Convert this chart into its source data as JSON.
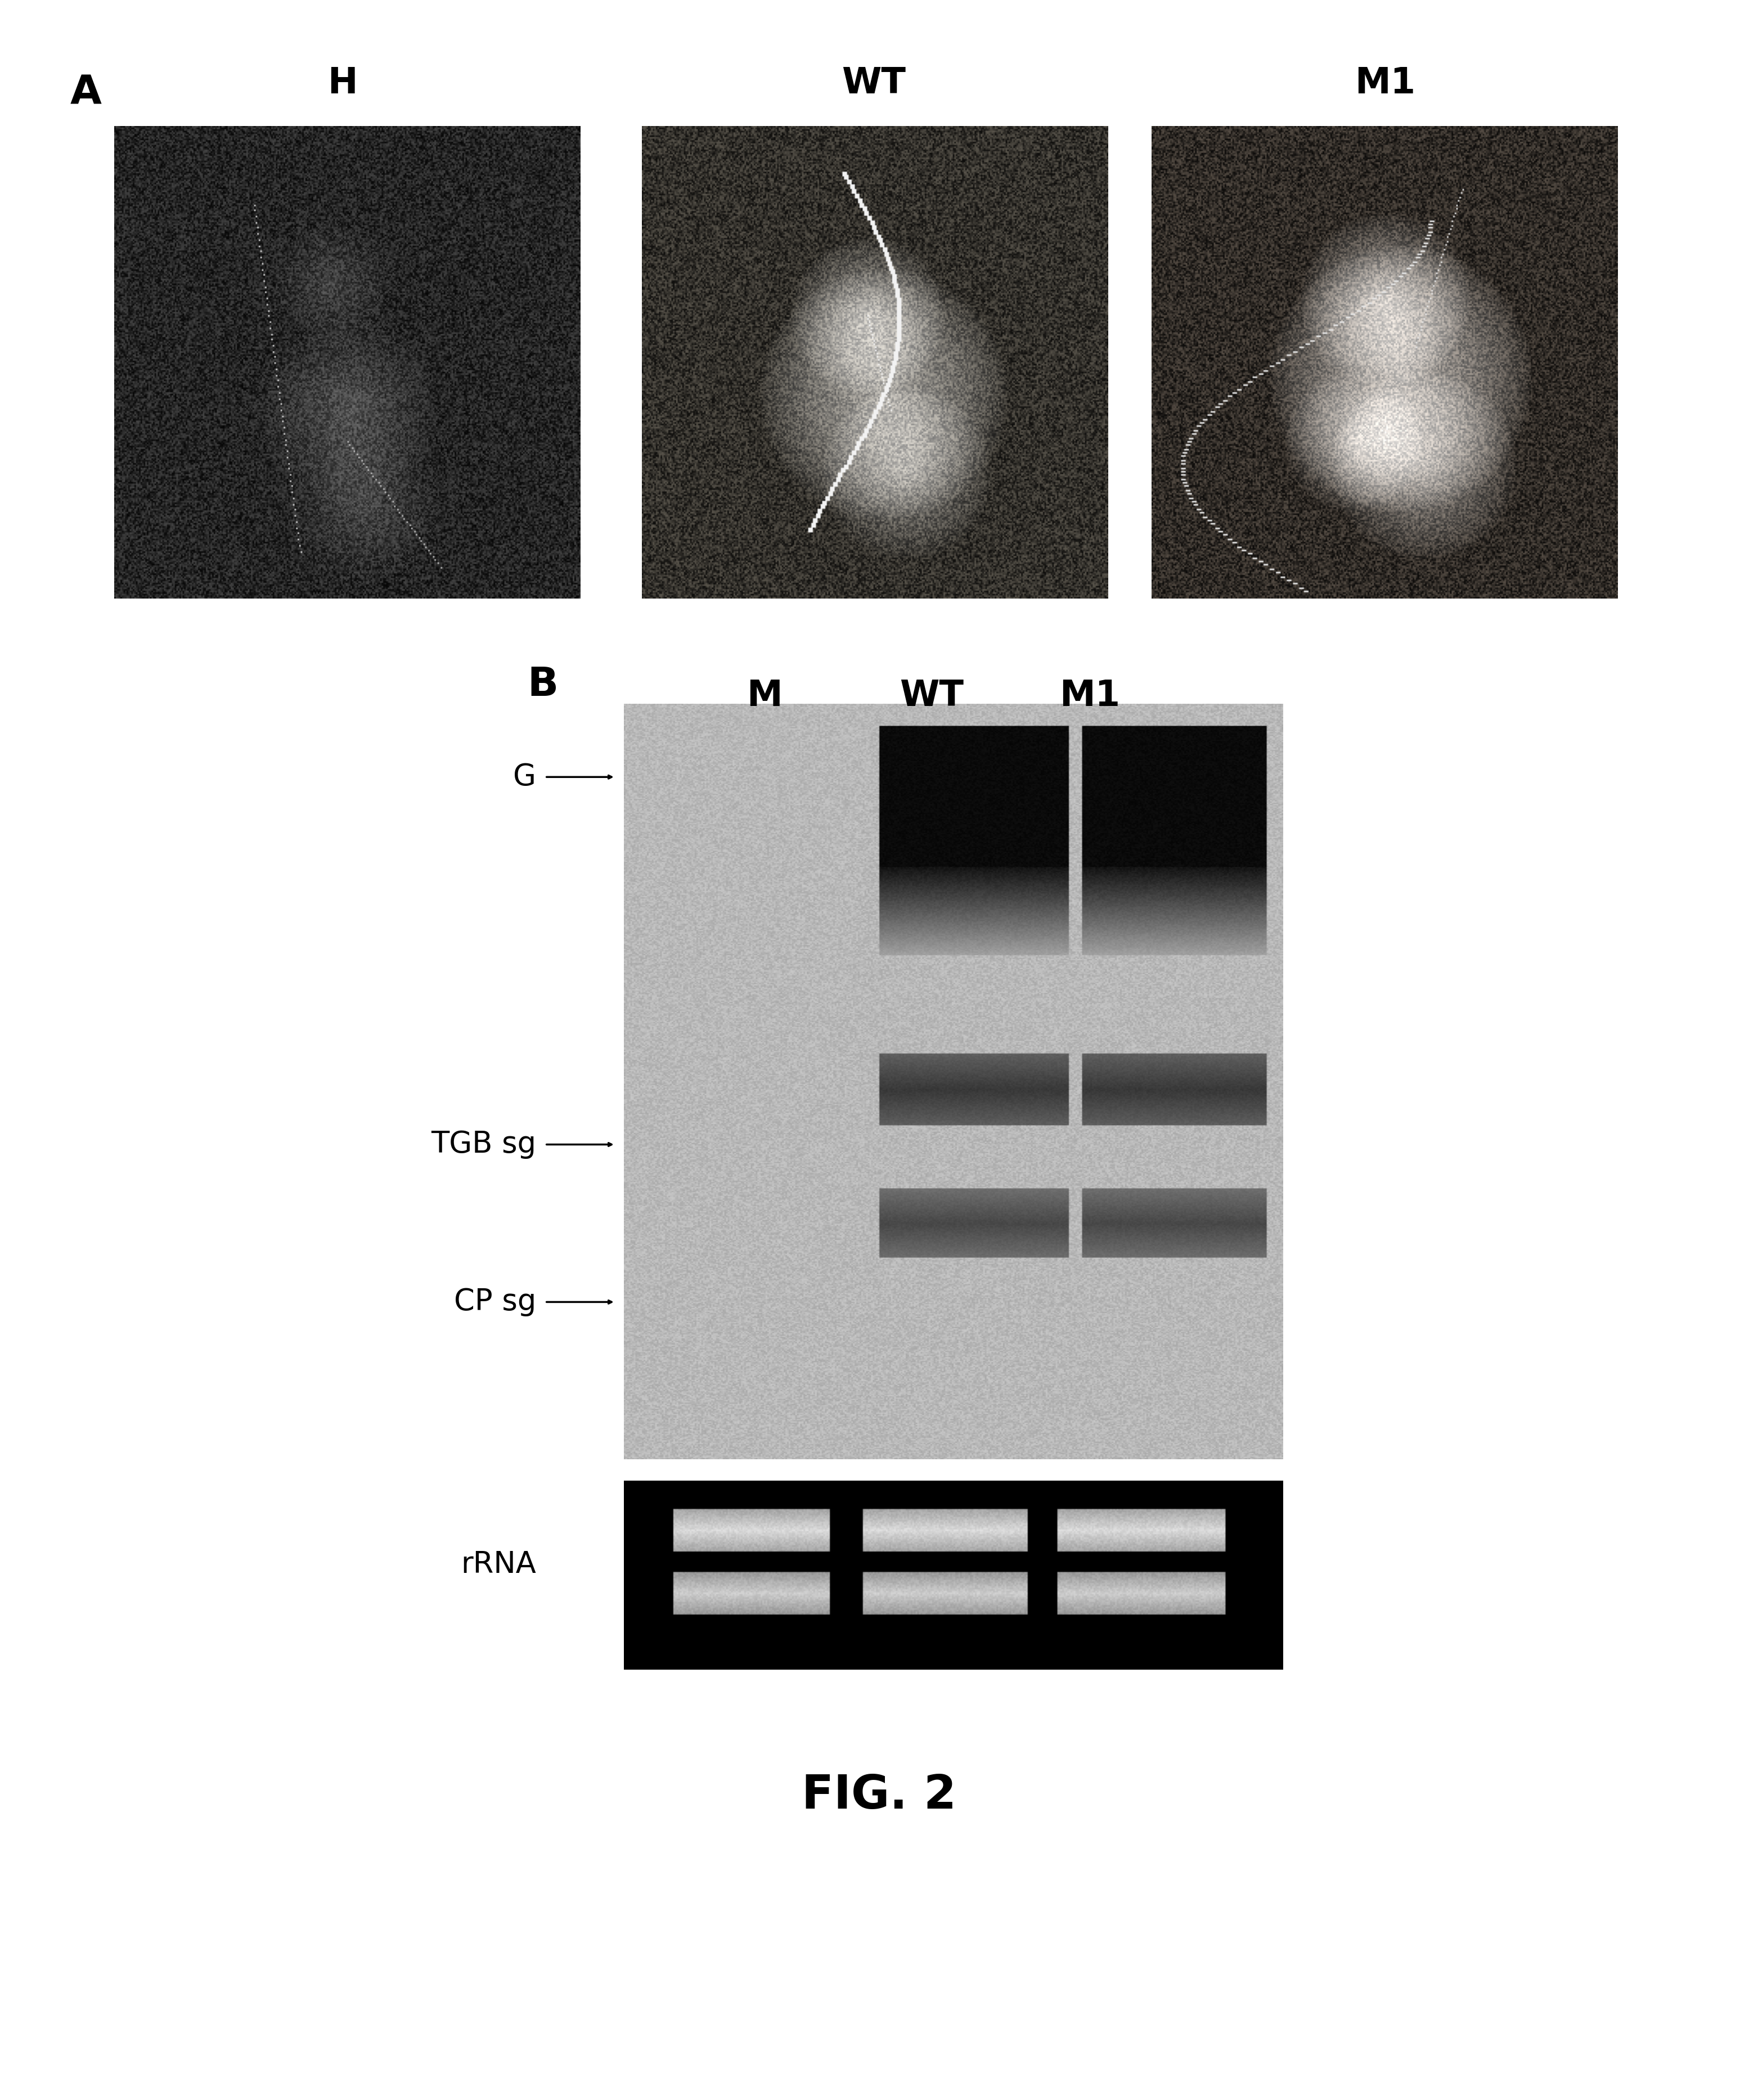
{
  "background_color": "#ffffff",
  "fig_width": 31.25,
  "fig_height": 37.33,
  "panel_A_label": "A",
  "panel_B_label": "B",
  "panel_A_sublabels": [
    "H",
    "WT",
    "M1"
  ],
  "panel_B_lane_labels": [
    "M",
    "WT",
    "M1"
  ],
  "panel_B_row_labels": [
    "G",
    "TGB sg",
    "CP sg",
    "rRNA"
  ],
  "fig_caption": "FIG. 2",
  "label_fontsize": 52,
  "sublabel_fontsize": 46,
  "caption_fontsize": 60,
  "row_label_fontsize": 38
}
